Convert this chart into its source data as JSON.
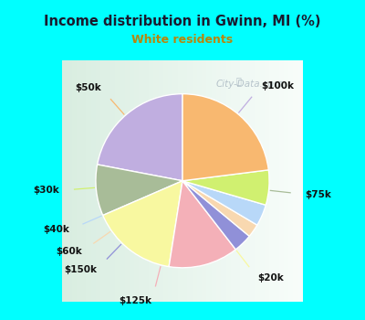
{
  "title": "Income distribution in Gwinn, MI (%)",
  "subtitle": "White residents",
  "title_color": "#1a1a2e",
  "subtitle_color": "#b8860b",
  "background_outer": "#00ffff",
  "chart_bg_topleft": "#e8f5ee",
  "chart_bg_topright": "#f0f8ff",
  "chart_bg_bottomright": "#e8f5ee",
  "labels": [
    "$100k",
    "$75k",
    "$20k",
    "$125k",
    "$150k",
    "$60k",
    "$40k",
    "$30k",
    "$50k"
  ],
  "values": [
    22.0,
    9.5,
    16.0,
    13.0,
    3.5,
    2.5,
    4.0,
    6.5,
    23.0
  ],
  "colors": [
    "#c0aee0",
    "#a8bc98",
    "#f8f8a0",
    "#f4b0b8",
    "#9090d8",
    "#f8d8b0",
    "#b8d8f8",
    "#d0f070",
    "#f8b870"
  ],
  "startangle": 90,
  "label_fontsize": 7.5,
  "watermark": "City-Data.com"
}
